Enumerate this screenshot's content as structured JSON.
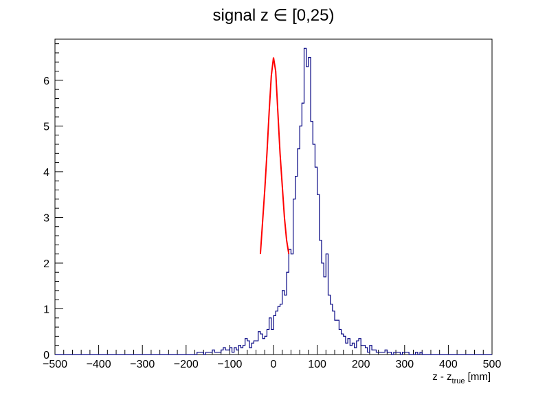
{
  "chart_data": {
    "type": "histogram",
    "title": "signal z ∈ [0,25)",
    "xlabel": {
      "main": "z - z",
      "subscript": "true",
      "suffix": " [mm]"
    },
    "ylabel": "",
    "xlim": [
      -500,
      500
    ],
    "ylim": [
      0,
      6.9
    ],
    "x_ticks": [
      -500,
      -400,
      -300,
      -200,
      -100,
      0,
      100,
      200,
      300,
      400,
      500
    ],
    "x_tick_labels": [
      "−500",
      "−400",
      "−300",
      "−200",
      "−100",
      "0",
      "100",
      "200",
      "300",
      "400",
      "500"
    ],
    "y_ticks": [
      0,
      1,
      2,
      3,
      4,
      5,
      6
    ],
    "y_tick_labels": [
      "0",
      "1",
      "2",
      "3",
      "4",
      "5",
      "6"
    ],
    "grid": false,
    "legend": "none",
    "bin_width": 5,
    "bin_start": -500,
    "series": [
      {
        "kind": "histogram",
        "color": "#000080",
        "values": [
          0.0,
          0.0,
          0.0,
          0.0,
          0.0,
          0.0,
          0.0,
          0.0,
          0.0,
          0.0,
          0.0,
          0.0,
          0.0,
          0.0,
          0.0,
          0.0,
          0.0,
          0.0,
          0.0,
          0.0,
          0.0,
          0.0,
          0.0,
          0.0,
          0.0,
          0.0,
          0.0,
          0.0,
          0.0,
          0.0,
          0.0,
          0.0,
          0.0,
          0.0,
          0.0,
          0.0,
          0.0,
          0.0,
          0.0,
          0.0,
          0.0,
          0.0,
          0.0,
          0.0,
          0.0,
          0.0,
          0.0,
          0.0,
          0.0,
          0.0,
          0.0,
          0.0,
          0.0,
          0.0,
          0.0,
          0.0,
          0.0,
          0.0,
          0.0,
          0.0,
          0.0,
          0.0,
          0.0,
          0.0,
          0.0,
          0.05,
          0.05,
          0.05,
          0.0,
          0.05,
          0.05,
          0.05,
          0.1,
          0.05,
          0.05,
          0.05,
          0.1,
          0.15,
          0.1,
          0.1,
          0.15,
          0.05,
          0.15,
          0.1,
          0.2,
          0.15,
          0.2,
          0.35,
          0.3,
          0.15,
          0.25,
          0.3,
          0.3,
          0.5,
          0.45,
          0.35,
          0.4,
          0.55,
          0.8,
          0.55,
          0.85,
          0.95,
          1.05,
          1.1,
          1.4,
          1.3,
          1.8,
          2.3,
          2.2,
          3.4,
          3.9,
          4.5,
          5.0,
          5.5,
          6.7,
          6.3,
          6.5,
          5.1,
          4.6,
          4.1,
          3.5,
          2.5,
          2.0,
          1.7,
          2.2,
          1.3,
          1.1,
          0.95,
          0.75,
          0.75,
          0.55,
          0.45,
          0.4,
          0.25,
          0.35,
          0.2,
          0.25,
          0.15,
          0.3,
          0.35,
          0.2,
          0.2,
          0.15,
          0.05,
          0.2,
          0.1,
          0.1,
          0.05,
          0.05,
          0.05,
          0.05,
          0.1,
          0.05,
          0.05,
          0.0,
          0.05,
          0.05,
          0.05,
          0.0,
          0.05,
          0.05,
          0.05,
          0.0,
          0.0,
          0.0,
          0.05,
          0.0,
          0.05,
          0.0,
          0.0,
          0.0,
          0.0,
          0.0,
          0.0,
          0.0,
          0.0,
          0.0,
          0.0,
          0.0,
          0.0,
          0.0,
          0.0,
          0.0,
          0.0,
          0.0,
          0.0,
          0.0,
          0.0,
          0.0,
          0.0,
          0.0,
          0.0,
          0.0,
          0.0,
          0.0,
          0.0,
          0.0,
          0.0,
          0.0,
          0.0
        ]
      },
      {
        "kind": "fit",
        "color": "#ff0000",
        "x_range": [
          -30,
          35
        ],
        "x": [
          -30,
          -25,
          -20,
          -15,
          -10,
          -5,
          0,
          5,
          10,
          15,
          20,
          25,
          30,
          35
        ],
        "y": [
          2.2,
          2.9,
          3.6,
          4.4,
          5.3,
          6.1,
          6.5,
          6.2,
          5.3,
          4.4,
          3.7,
          3.0,
          2.5,
          2.2
        ]
      }
    ]
  }
}
